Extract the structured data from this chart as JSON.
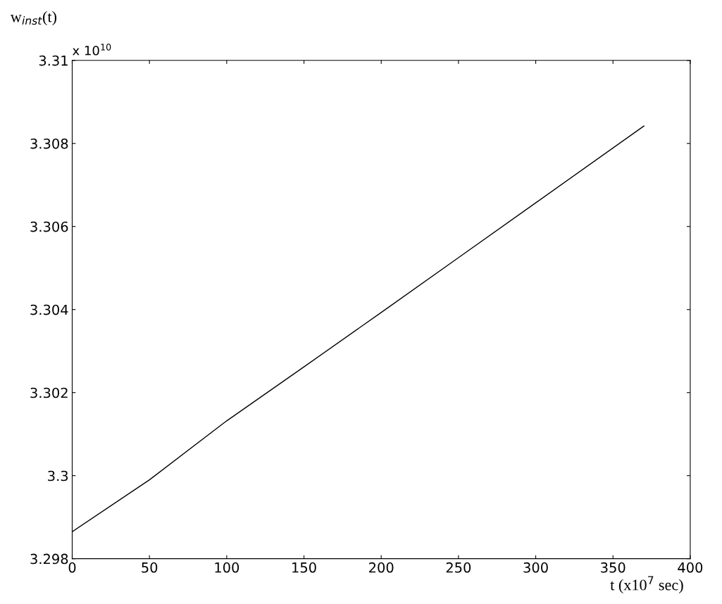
{
  "chart_data": {
    "type": "line",
    "xlabel": "t (x10$^{7}$ sec)",
    "ylabel": "w$_{inst}$(t)",
    "annotations": [
      "x 10$^{10}$"
    ],
    "x": [
      0,
      50,
      100,
      150,
      200,
      250,
      300,
      370
    ],
    "series": [
      {
        "color": "#000000",
        "values": [
          3.29865,
          3.2999,
          3.30132,
          3.30262,
          3.30393,
          3.30525,
          3.30657,
          3.30842
        ]
      }
    ],
    "xlim": [
      0,
      400
    ],
    "xticks": [
      0,
      50,
      100,
      150,
      200,
      250,
      300,
      350,
      400
    ],
    "ylim": [
      3.298,
      3.31
    ],
    "yticks": [
      3.298,
      3.3,
      3.302,
      3.304,
      3.306,
      3.308,
      3.31
    ],
    "grid": false,
    "marker": "none",
    "line_style": "solid"
  }
}
